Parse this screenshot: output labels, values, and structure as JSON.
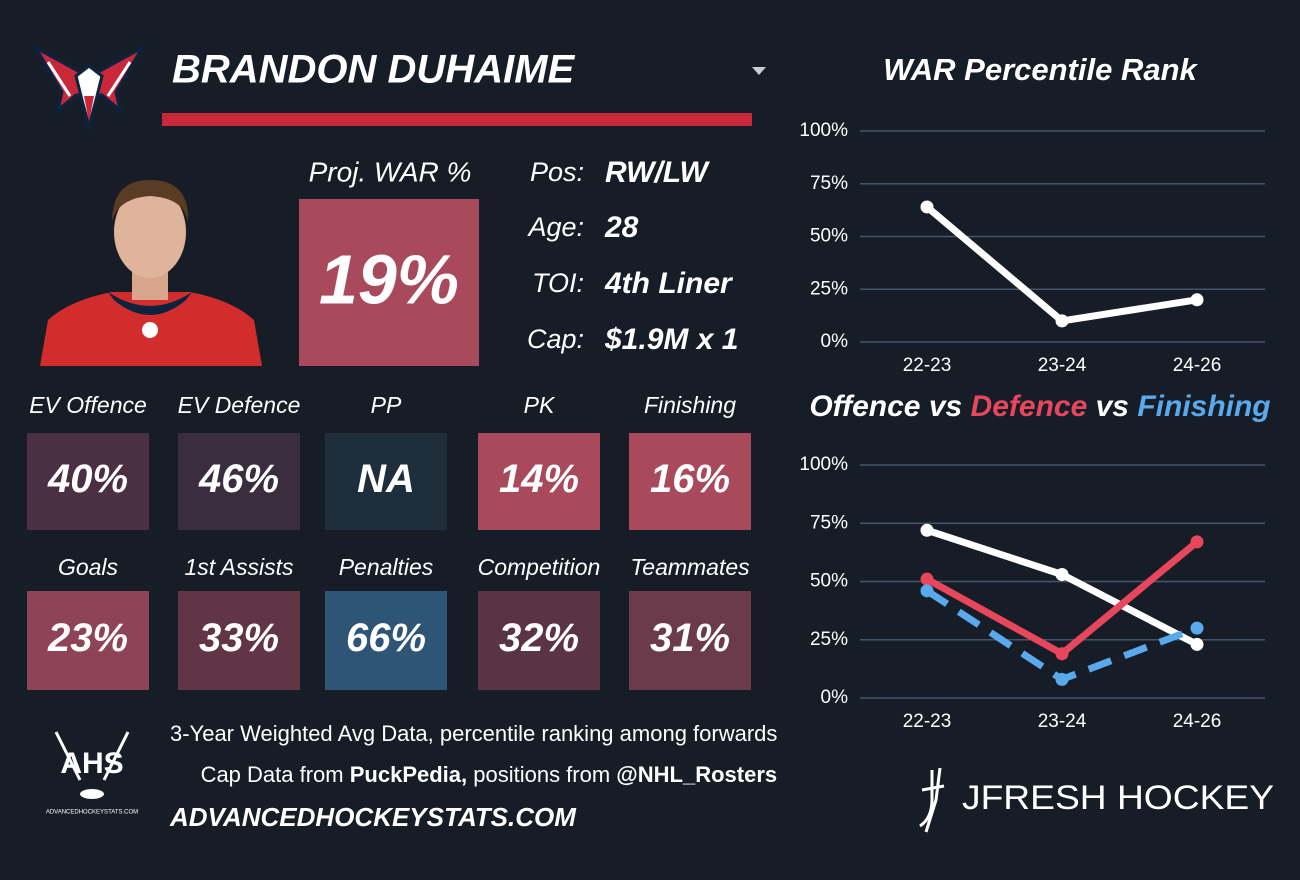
{
  "header": {
    "name": "BRANDON DUHAIME"
  },
  "proj_war": {
    "label": "Proj. WAR %",
    "value": "19%",
    "color": "#a84a5c"
  },
  "info": [
    {
      "label": "Pos:",
      "value": "RW/LW"
    },
    {
      "label": "Age:",
      "value": "28"
    },
    {
      "label": "TOI:",
      "value": "4th Liner"
    },
    {
      "label": "Cap:",
      "value": "$1.9M x 1"
    }
  ],
  "tiles": [
    {
      "label": "EV Offence",
      "value": "40%",
      "color": "#4a3042"
    },
    {
      "label": "EV Defence",
      "value": "46%",
      "color": "#3a2d3e"
    },
    {
      "label": "PP",
      "value": "NA",
      "color": "#1f2e3b"
    },
    {
      "label": "PK",
      "value": "14%",
      "color": "#a84a5c"
    },
    {
      "label": "Finishing",
      "value": "16%",
      "color": "#a84a5c"
    },
    {
      "label": "Goals",
      "value": "23%",
      "color": "#8f4357"
    },
    {
      "label": "1st Assists",
      "value": "33%",
      "color": "#623546"
    },
    {
      "label": "Penalties",
      "value": "66%",
      "color": "#2e5575"
    },
    {
      "label": "Competition",
      "value": "32%",
      "color": "#5a3444"
    },
    {
      "label": "Teammates",
      "value": "31%",
      "color": "#6b3a4b"
    }
  ],
  "footer": {
    "logo": "AHS",
    "logo_caption": "ADVANCEDHOCKEYSTATS.COM",
    "note": "3-Year Weighted Avg Data, percentile ranking among forwards",
    "credit": [
      "Cap Data from ",
      "PuckPedia,",
      " positions from ",
      "@NHL_Rosters"
    ],
    "site": "ADVANCEDHOCKEYSTATS.COM",
    "brand": "JFRESH HOCKEY"
  },
  "chart_data": [
    {
      "type": "line",
      "title": "WAR Percentile Rank",
      "categories": [
        "22-23",
        "23-24",
        "24-26"
      ],
      "series": [
        {
          "name": "WAR",
          "color": "#ffffff",
          "values": [
            64,
            10,
            20
          ]
        }
      ],
      "ylim": [
        0,
        100
      ],
      "yticks": [
        {
          "value": 0,
          "label": "0%"
        },
        {
          "value": 25,
          "label": "25%"
        },
        {
          "value": 50,
          "label": "50%"
        },
        {
          "value": 75,
          "label": "75%"
        },
        {
          "value": 100,
          "label": "100%"
        }
      ],
      "grid": true
    },
    {
      "type": "line",
      "legend_separator": " vs ",
      "categories": [
        "22-23",
        "23-24",
        "24-26"
      ],
      "series": [
        {
          "name": "Offence",
          "color": "#ffffff",
          "values": [
            72,
            53,
            23
          ]
        },
        {
          "name": "Defence",
          "color": "#e8465c",
          "values": [
            51,
            19,
            67
          ]
        },
        {
          "name": "Finishing",
          "color": "#5aa9ec",
          "values": [
            46,
            8,
            30
          ],
          "dashed": true
        }
      ],
      "ylim": [
        0,
        100
      ],
      "yticks": [
        {
          "value": 0,
          "label": "0%"
        },
        {
          "value": 25,
          "label": "25%"
        },
        {
          "value": 50,
          "label": "50%"
        },
        {
          "value": 75,
          "label": "75%"
        },
        {
          "value": 100,
          "label": "100%"
        }
      ],
      "grid": true
    }
  ]
}
